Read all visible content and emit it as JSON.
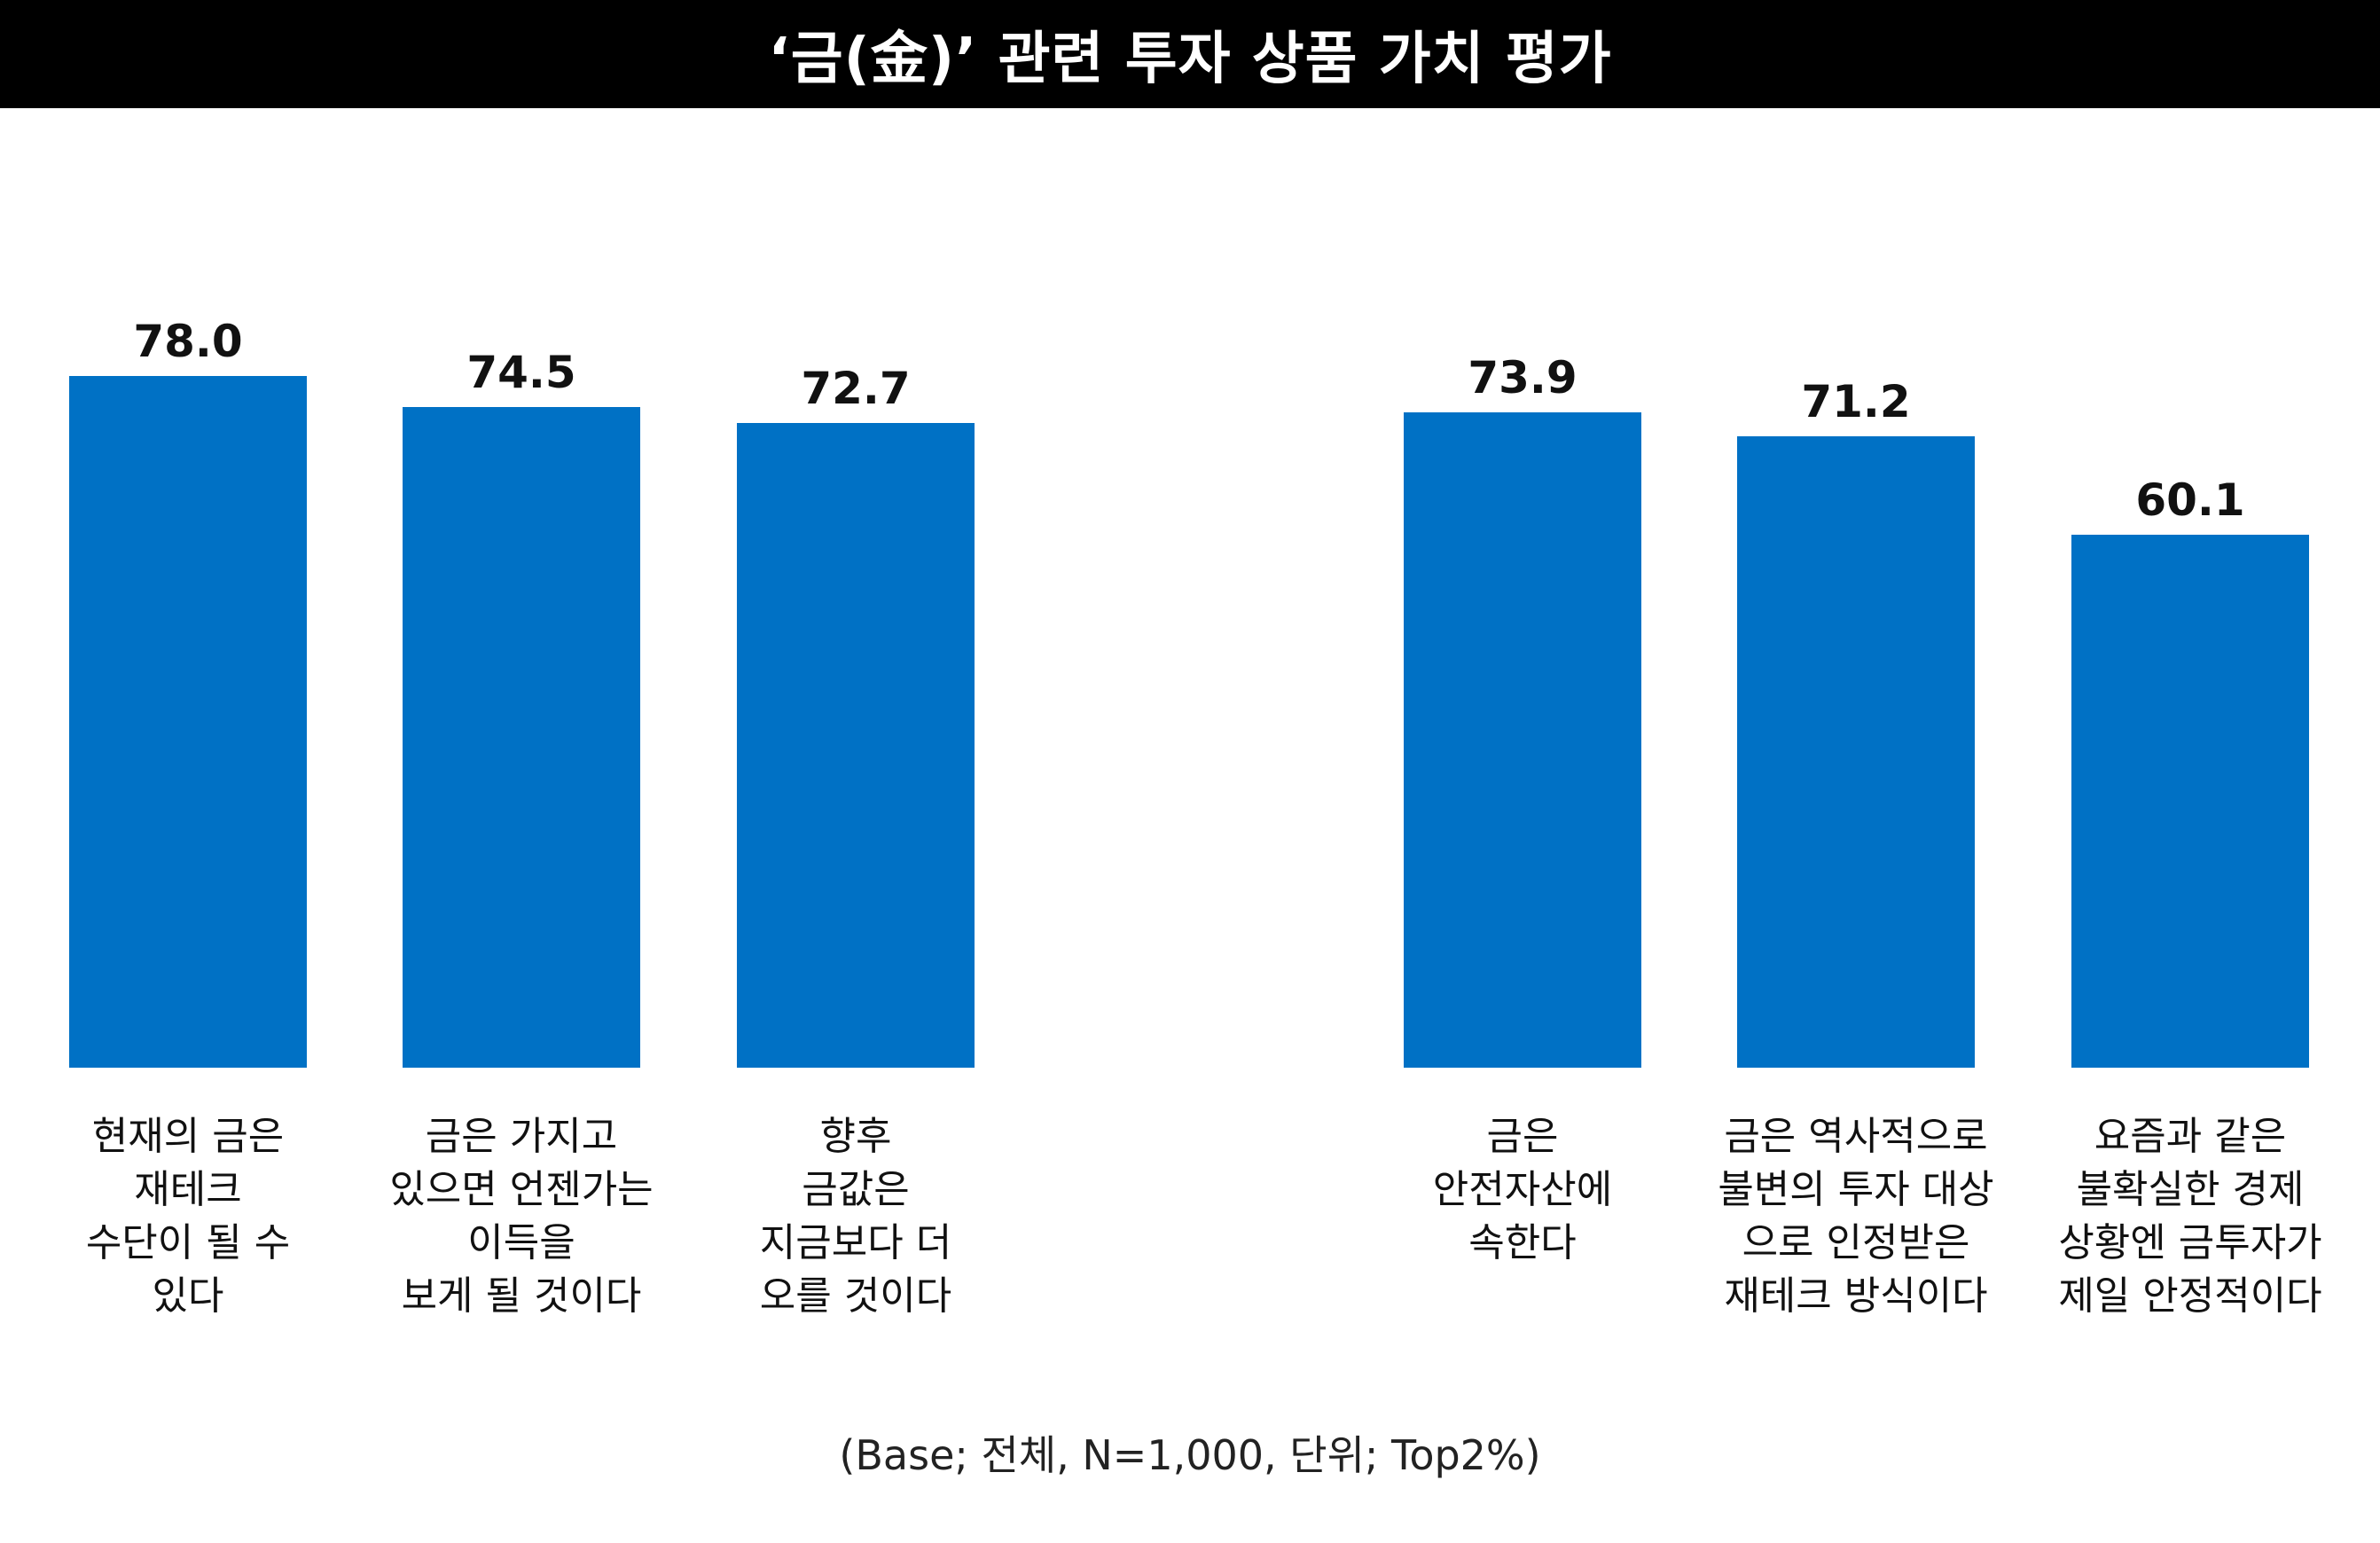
{
  "title": "‘금(金)’ 관련 투자 상품 가치 평가",
  "footnote": "(Base; 전체, N=1,000, 단위; Top2%)",
  "colors": {
    "bar": "#0071C5",
    "title_bg": "#000000",
    "title_text": "#FFFFFF"
  },
  "chart_data": {
    "type": "bar",
    "title": "‘금(金)’ 관련 투자 상품 가치 평가",
    "xlabel": "",
    "ylabel": "",
    "ylim": [
      0,
      85
    ],
    "grid": false,
    "groups": 2,
    "categories": [
      "현재의 금은\n재테크\n수단이 될 수\n있다",
      "금은 가지고\n있으면 언젠가는\n이득을\n보게 될 것이다",
      "향후\n금값은\n지금보다 더\n오를 것이다",
      "금은\n안전자산에\n속한다",
      "금은 역사적으로\n불변의 투자 대상\n으로 인정받은\n재테크 방식이다",
      "요즘과 같은\n불확실한 경제\n상황엔 금투자가\n제일 안정적이다"
    ],
    "values": [
      78.0,
      74.5,
      72.7,
      73.9,
      71.2,
      60.1
    ],
    "value_labels": [
      "78.0",
      "74.5",
      "72.7",
      "73.9",
      "71.2",
      "60.1"
    ]
  }
}
